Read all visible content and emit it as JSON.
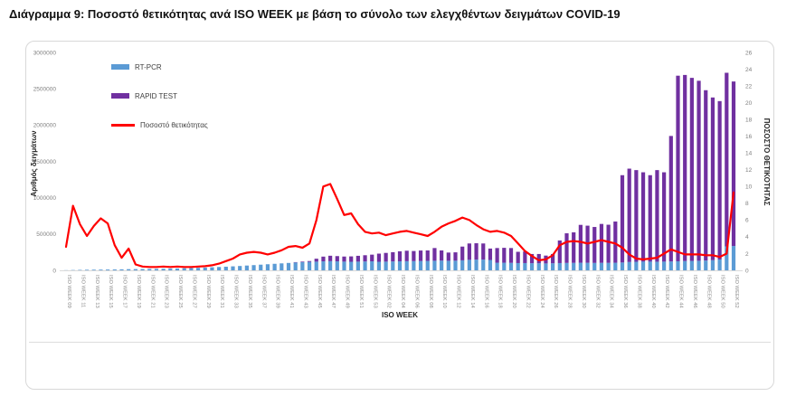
{
  "title": {
    "prefix": "Διάγραμμα 9:",
    "text": "Ποσοστό θετικότητας ανά ISO WEEK με βάση το σύνολο των ελεγχθέντων δειγμάτων COVID-19"
  },
  "chart_data": {
    "type": "bar",
    "subtype": "stacked-bars-with-line-overlay",
    "title": "Ποσοστό θετικότητας ανά ISO WEEK με βάση το σύνολο των ελεγχθέντων δειγμάτων COVID-19",
    "xlabel": "ISO WEEK",
    "grid": false,
    "legend_position": "top-left-inside",
    "tick_every": 2,
    "left_axis": {
      "title": "Αριθμός δειγμάτων",
      "min": 0,
      "max": 3000000,
      "step": 500000
    },
    "right_axis": {
      "title": "ΠΟΣΟΣΤΟ ΘΕΤΙΚΟΤΗΤΑΣ",
      "min": 0,
      "max": 26,
      "step": 2
    },
    "categories": [
      "ISO WEEK 09",
      "ISO WEEK 10",
      "ISO WEEK 11",
      "ISO WEEK 12",
      "ISO WEEK 13",
      "ISO WEEK 14",
      "ISO WEEK 15",
      "ISO WEEK 16",
      "ISO WEEK 17",
      "ISO WEEK 18",
      "ISO WEEK 19",
      "ISO WEEK 20",
      "ISO WEEK 21",
      "ISO WEEK 22",
      "ISO WEEK 23",
      "ISO WEEK 24",
      "ISO WEEK 25",
      "ISO WEEK 26",
      "ISO WEEK 27",
      "ISO WEEK 28",
      "ISO WEEK 29",
      "ISO WEEK 30",
      "ISO WEEK 31",
      "ISO WEEK 32",
      "ISO WEEK 33",
      "ISO WEEK 34",
      "ISO WEEK 35",
      "ISO WEEK 36",
      "ISO WEEK 37",
      "ISO WEEK 38",
      "ISO WEEK 39",
      "ISO WEEK 40",
      "ISO WEEK 41",
      "ISO WEEK 42",
      "ISO WEEK 43",
      "ISO WEEK 44",
      "ISO WEEK 45",
      "ISO WEEK 46",
      "ISO WEEK 47",
      "ISO WEEK 48",
      "ISO WEEK 49",
      "ISO WEEK 50",
      "ISO WEEK 51",
      "ISO WEEK 52",
      "ISO WEEK 53",
      "ISO WEEK 01",
      "ISO WEEK 02",
      "ISO WEEK 03",
      "ISO WEEK 04",
      "ISO WEEK 05",
      "ISO WEEK 06",
      "ISO WEEK 07",
      "ISO WEEK 08",
      "ISO WEEK 09",
      "ISO WEEK 10",
      "ISO WEEK 11",
      "ISO WEEK 12",
      "ISO WEEK 13",
      "ISO WEEK 14",
      "ISO WEEK 15",
      "ISO WEEK 16",
      "ISO WEEK 17",
      "ISO WEEK 18",
      "ISO WEEK 19",
      "ISO WEEK 20",
      "ISO WEEK 21",
      "ISO WEEK 22",
      "ISO WEEK 23",
      "ISO WEEK 24",
      "ISO WEEK 25",
      "ISO WEEK 26",
      "ISO WEEK 27",
      "ISO WEEK 28",
      "ISO WEEK 29",
      "ISO WEEK 30",
      "ISO WEEK 31",
      "ISO WEEK 32",
      "ISO WEEK 33",
      "ISO WEEK 34",
      "ISO WEEK 35",
      "ISO WEEK 36",
      "ISO WEEK 37",
      "ISO WEEK 38",
      "ISO WEEK 39",
      "ISO WEEK 40",
      "ISO WEEK 41",
      "ISO WEEK 42",
      "ISO WEEK 43",
      "ISO WEEK 44",
      "ISO WEEK 45",
      "ISO WEEK 46",
      "ISO WEEK 47",
      "ISO WEEK 48",
      "ISO WEEK 49",
      "ISO WEEK 50",
      "ISO WEEK 51",
      "ISO WEEK 52"
    ],
    "series": [
      {
        "name": "RT-PCR",
        "kind": "bar-stack-bottom",
        "axis": "left",
        "color": "#5B9BD5",
        "values": [
          2000,
          4000,
          6000,
          8000,
          9000,
          10000,
          11000,
          12000,
          14000,
          16000,
          17000,
          18000,
          19000,
          20000,
          22000,
          24000,
          26000,
          29000,
          32000,
          35000,
          38000,
          42000,
          46000,
          50000,
          55000,
          60000,
          66000,
          72000,
          78000,
          84000,
          90000,
          96000,
          102000,
          108000,
          112000,
          116000,
          120000,
          124000,
          126000,
          124000,
          120000,
          118000,
          120000,
          122000,
          124000,
          118000,
          120000,
          122000,
          124000,
          126000,
          127000,
          128000,
          130000,
          132000,
          134000,
          132000,
          133000,
          138000,
          145000,
          148000,
          148000,
          143000,
          105000,
          105000,
          103000,
          100000,
          100000,
          98000,
          97000,
          95000,
          97000,
          100000,
          102000,
          103000,
          105000,
          104000,
          102000,
          104000,
          103000,
          105000,
          108000,
          115000,
          118000,
          120000,
          120000,
          119000,
          120000,
          122000,
          125000,
          128000,
          130000,
          132000,
          135000,
          140000,
          150000,
          330000,
          335000
        ]
      },
      {
        "name": "RAPID TEST",
        "kind": "bar-stack-top",
        "axis": "left",
        "color": "#7030A0",
        "values": [
          0,
          0,
          0,
          0,
          0,
          0,
          0,
          0,
          0,
          0,
          0,
          0,
          0,
          0,
          0,
          0,
          0,
          0,
          0,
          0,
          0,
          0,
          0,
          0,
          0,
          0,
          0,
          0,
          0,
          0,
          0,
          0,
          0,
          5000,
          8000,
          12000,
          40000,
          65000,
          75000,
          72000,
          70000,
          74000,
          80000,
          86000,
          92000,
          112000,
          120000,
          128000,
          138000,
          144000,
          139000,
          145000,
          144000,
          175000,
          140000,
          113000,
          115000,
          189000,
          225000,
          225000,
          222000,
          157000,
          202000,
          205000,
          204000,
          155000,
          160000,
          127000,
          128000,
          108000,
          128000,
          311000,
          408000,
          420000,
          521000,
          511000,
          495000,
          535000,
          525000,
          567000,
          1202000,
          1285000,
          1262000,
          1230000,
          1190000,
          1261000,
          1230000,
          1728000,
          2555000,
          2562000,
          2520000,
          2478000,
          2345000,
          2240000,
          2180000,
          2390000,
          2265000
        ]
      },
      {
        "name": "Ποσοστό θετικότητας",
        "kind": "line",
        "axis": "right",
        "color": "#FF0000",
        "values": [
          2.8,
          7.7,
          5.5,
          4.1,
          5.3,
          6.2,
          5.6,
          3.0,
          1.5,
          2.6,
          0.7,
          0.45,
          0.4,
          0.4,
          0.45,
          0.4,
          0.45,
          0.4,
          0.4,
          0.45,
          0.5,
          0.6,
          0.8,
          1.1,
          1.4,
          1.9,
          2.1,
          2.2,
          2.1,
          1.9,
          2.1,
          2.4,
          2.8,
          2.9,
          2.7,
          3.2,
          6.0,
          10.0,
          10.3,
          8.5,
          6.6,
          6.8,
          5.5,
          4.6,
          4.4,
          4.5,
          4.2,
          4.4,
          4.6,
          4.7,
          4.5,
          4.3,
          4.1,
          4.6,
          5.2,
          5.6,
          5.9,
          6.3,
          6.0,
          5.4,
          4.9,
          4.6,
          4.7,
          4.5,
          4.1,
          3.2,
          2.3,
          1.7,
          1.2,
          1.3,
          1.8,
          3.0,
          3.4,
          3.5,
          3.4,
          3.2,
          3.4,
          3.6,
          3.4,
          3.2,
          2.7,
          1.9,
          1.4,
          1.3,
          1.4,
          1.5,
          2.0,
          2.5,
          2.2,
          1.9,
          1.9,
          1.9,
          1.8,
          1.8,
          1.6,
          2.0,
          9.3
        ]
      }
    ]
  }
}
